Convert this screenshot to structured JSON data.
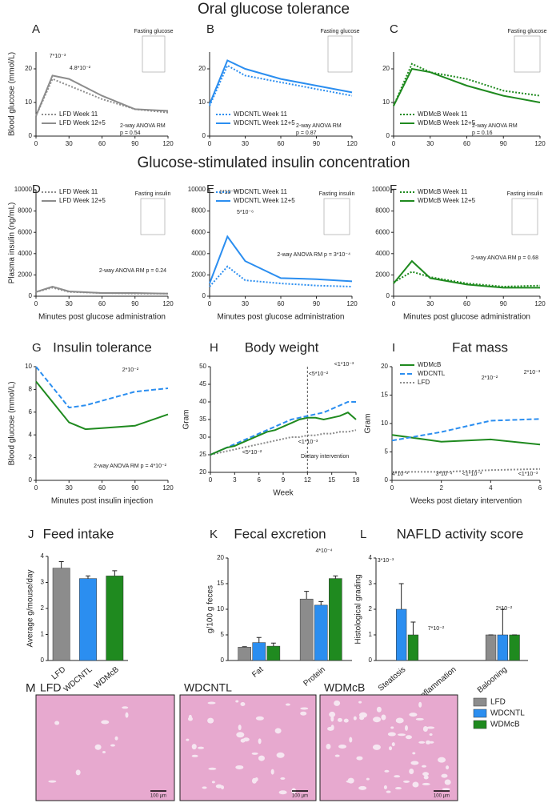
{
  "headings": [
    "Oral glucose tolerance",
    "Glucose-stimulated insulin concentration"
  ],
  "chart_data": [
    {
      "type": "line",
      "panel": "A",
      "ylabel": "Blood glucose (mmol/L)",
      "inset_title": "Fasting glucose",
      "x": [
        0,
        15,
        30,
        60,
        90,
        120
      ],
      "xlim": [
        0,
        120
      ],
      "xticks": [
        0,
        30,
        60,
        90,
        120
      ],
      "ylim": [
        0,
        25
      ],
      "yticks": [
        0,
        10,
        20
      ],
      "series": [
        {
          "name": "LFD Week 11",
          "color": "#8c8c8c",
          "dash": "dotted",
          "values": [
            6,
            17,
            15,
            11,
            8,
            7
          ]
        },
        {
          "name": "LFD Week 12+5",
          "color": "#8c8c8c",
          "dash": "solid",
          "values": [
            6,
            18,
            17,
            12,
            8,
            7.5
          ]
        }
      ],
      "annotations": [
        "7*10⁻³",
        "4.8*10⁻²",
        "2-way ANOVA RM",
        "p = 0.54"
      ]
    },
    {
      "type": "line",
      "panel": "B",
      "inset_title": "Fasting glucose",
      "x": [
        0,
        15,
        30,
        60,
        90,
        120
      ],
      "xlim": [
        0,
        120
      ],
      "xticks": [
        0,
        30,
        60,
        90,
        120
      ],
      "ylim": [
        0,
        25
      ],
      "yticks": [
        0,
        10,
        20
      ],
      "series": [
        {
          "name": "WDCNTL Week 11",
          "color": "#2b8ef0",
          "dash": "dotted",
          "values": [
            9,
            21,
            18,
            16,
            14,
            12
          ]
        },
        {
          "name": "WDCNTL Week 12+5",
          "color": "#2b8ef0",
          "dash": "solid",
          "values": [
            9.5,
            22.5,
            20,
            17,
            15,
            13
          ]
        }
      ],
      "annotations": [
        "2-way ANOVA RM",
        "p = 0.87"
      ]
    },
    {
      "type": "line",
      "panel": "C",
      "inset_title": "Fasting glucose",
      "x": [
        0,
        15,
        30,
        60,
        90,
        120
      ],
      "xlim": [
        0,
        120
      ],
      "xticks": [
        0,
        30,
        60,
        90,
        120
      ],
      "ylim": [
        0,
        25
      ],
      "yticks": [
        0,
        10,
        20
      ],
      "series": [
        {
          "name": "WDMcB Week 11",
          "color": "#1f8a1f",
          "dash": "dotted",
          "values": [
            9,
            21.5,
            19,
            17,
            13.5,
            12
          ]
        },
        {
          "name": "WDMcB Week 12+5",
          "color": "#1f8a1f",
          "dash": "solid",
          "values": [
            9,
            20,
            19,
            15,
            12,
            10
          ]
        }
      ],
      "annotations": [
        "2-way ANOVA RM",
        "p = 0.16"
      ]
    },
    {
      "type": "line",
      "panel": "D",
      "ylabel": "Plasma insulin (ng/mL)",
      "xlabel": "Minutes post glucose administration",
      "inset_title": "Fasting insulin",
      "x": [
        0,
        15,
        30,
        60,
        90,
        120
      ],
      "xlim": [
        0,
        120
      ],
      "xticks": [
        0,
        30,
        60,
        90,
        120
      ],
      "ylim": [
        0,
        10000
      ],
      "yticks": [
        0,
        2000,
        4000,
        6000,
        8000,
        10000
      ],
      "series": [
        {
          "name": "LFD Week 11",
          "color": "#8c8c8c",
          "dash": "dotted",
          "values": [
            400,
            800,
            400,
            300,
            250,
            250
          ]
        },
        {
          "name": "LFD Week 12+5",
          "color": "#8c8c8c",
          "dash": "solid",
          "values": [
            400,
            900,
            450,
            300,
            300,
            250
          ]
        }
      ],
      "annotations": [
        "2-way ANOVA RM p = 0.24"
      ]
    },
    {
      "type": "line",
      "panel": "E",
      "xlabel": "Minutes post glucose administration",
      "inset_title": "Fasting insulin",
      "x": [
        0,
        15,
        30,
        60,
        90,
        120
      ],
      "xlim": [
        0,
        120
      ],
      "xticks": [
        0,
        30,
        60,
        90,
        120
      ],
      "ylim": [
        0,
        10000
      ],
      "yticks": [
        0,
        2000,
        4000,
        6000,
        8000,
        10000
      ],
      "series": [
        {
          "name": "WDCNTL Week 11",
          "color": "#2b8ef0",
          "dash": "dotted",
          "values": [
            900,
            2800,
            1500,
            1200,
            1000,
            900
          ]
        },
        {
          "name": "WDCNTL Week 12+5",
          "color": "#2b8ef0",
          "dash": "solid",
          "values": [
            1200,
            5600,
            3300,
            1700,
            1600,
            1400
          ]
        }
      ],
      "annotations": [
        "1*10⁻¹⁰",
        "5*10⁻⁶",
        "2-way ANOVA RM p = 3*10⁻⁴"
      ]
    },
    {
      "type": "line",
      "panel": "F",
      "xlabel": "Minutes post glucose administration",
      "inset_title": "Fasting insulin",
      "x": [
        0,
        15,
        30,
        60,
        90,
        120
      ],
      "xlim": [
        0,
        120
      ],
      "xticks": [
        0,
        30,
        60,
        90,
        120
      ],
      "ylim": [
        0,
        10000
      ],
      "yticks": [
        0,
        2000,
        4000,
        6000,
        8000,
        10000
      ],
      "series": [
        {
          "name": "WDMcB Week 11",
          "color": "#1f8a1f",
          "dash": "dotted",
          "values": [
            1300,
            2300,
            1800,
            1200,
            900,
            1000
          ]
        },
        {
          "name": "WDMcB Week 12+5",
          "color": "#1f8a1f",
          "dash": "solid",
          "values": [
            1200,
            3300,
            1700,
            1100,
            800,
            800
          ]
        }
      ],
      "annotations": [
        "2-way ANOVA RM p = 0.68"
      ]
    },
    {
      "type": "line",
      "panel": "G",
      "title": "Insulin tolerance",
      "ylabel": "Blood glucose (mmol/L)",
      "xlabel": "Minutes post insulin injection",
      "x": [
        0,
        30,
        45,
        60,
        90,
        120
      ],
      "xlim": [
        0,
        120
      ],
      "xticks": [
        0,
        30,
        60,
        90,
        120
      ],
      "ylim": [
        0,
        10
      ],
      "yticks": [
        0,
        2,
        4,
        6,
        8,
        10
      ],
      "series": [
        {
          "color": "#2b8ef0",
          "dash": "dashed",
          "values": [
            10,
            6.4,
            6.6,
            7,
            7.8,
            8.1
          ]
        },
        {
          "color": "#1f8a1f",
          "dash": "solid",
          "values": [
            8.7,
            5.1,
            4.5,
            4.6,
            4.8,
            5.8
          ]
        }
      ],
      "annotations": [
        "2*10⁻²",
        "2-way ANOVA RM p = 4*10⁻²"
      ]
    },
    {
      "type": "line",
      "panel": "H",
      "title": "Body weight",
      "ylabel": "Gram",
      "xlabel": "Week",
      "x": [
        0,
        1,
        2,
        3,
        4,
        5,
        6,
        7,
        8,
        9,
        10,
        11,
        12,
        13,
        14,
        15,
        16,
        17,
        18
      ],
      "xlim": [
        0,
        18
      ],
      "xticks": [
        0,
        3,
        6,
        9,
        12,
        15,
        18
      ],
      "ylim": [
        20,
        50
      ],
      "yticks": [
        20,
        25,
        30,
        35,
        40,
        45,
        50
      ],
      "vline": 12,
      "series": [
        {
          "color": "#8c8c8c",
          "dash": "dotted",
          "values": [
            25,
            25.5,
            26,
            26.5,
            27,
            27.5,
            28,
            28.5,
            29,
            29.5,
            30,
            30,
            30.5,
            30.5,
            31,
            31,
            31.5,
            31.5,
            32
          ]
        },
        {
          "color": "#2b8ef0",
          "dash": "dashed",
          "values": [
            25,
            26,
            27,
            28,
            29,
            30,
            31,
            32,
            33,
            34,
            35,
            35.5,
            36,
            36.5,
            37,
            38,
            39,
            40,
            40
          ]
        },
        {
          "color": "#1f8a1f",
          "dash": "solid",
          "values": [
            25,
            26,
            27,
            27.5,
            28.5,
            29.5,
            30.5,
            31.5,
            32,
            33,
            34,
            35,
            35.5,
            35.5,
            35,
            35.5,
            36,
            37,
            35
          ]
        }
      ],
      "annotations": [
        "<1*10⁻³",
        "<5*10⁻²",
        "<5*10⁻²",
        "<1*10⁻³",
        "Dietary intervention"
      ]
    },
    {
      "type": "line",
      "panel": "I",
      "title": "Fat mass",
      "ylabel": "Gram",
      "xlabel": "Weeks post dietary intervention",
      "x": [
        0,
        2,
        4,
        6
      ],
      "xlim": [
        0,
        6
      ],
      "xticks": [
        0,
        2,
        4,
        6
      ],
      "ylim": [
        0,
        20
      ],
      "yticks": [
        0,
        5,
        10,
        15,
        20
      ],
      "series": [
        {
          "name": "WDMcB",
          "color": "#1f8a1f",
          "dash": "solid",
          "values": [
            8,
            6.8,
            7.2,
            6.3
          ]
        },
        {
          "name": "WDCNTL",
          "color": "#2b8ef0",
          "dash": "dashed",
          "values": [
            7,
            8.5,
            10.5,
            10.8
          ]
        },
        {
          "name": "LFD",
          "color": "#8c8c8c",
          "dash": "dotted",
          "values": [
            1.5,
            1.5,
            1.8,
            2
          ]
        }
      ],
      "annotations": [
        "2*10⁻²",
        "2*10⁻³",
        "4*10⁻³",
        "3*10⁻⁴",
        "<1*10⁻³",
        "<1*10⁻³"
      ]
    },
    {
      "type": "bar",
      "panel": "J",
      "title": "Feed intake",
      "ylabel": "Average g/mouse/day",
      "categories": [
        "LFD",
        "WDCNTL",
        "WDMcB"
      ],
      "values": [
        3.55,
        3.15,
        3.25
      ],
      "errors": [
        0.25,
        0.1,
        0.2
      ],
      "colors": [
        "#8c8c8c",
        "#2b8ef0",
        "#1f8a1f"
      ],
      "ylim": [
        0,
        4
      ],
      "yticks": [
        0,
        1,
        2,
        3,
        4
      ]
    },
    {
      "type": "bar",
      "panel": "K",
      "title": "Fecal excretion",
      "ylabel": "g/100 g feces",
      "categories": [
        "Fat",
        "Protein"
      ],
      "ylim": [
        0,
        20
      ],
      "yticks": [
        0,
        5,
        10,
        15,
        20
      ],
      "series": [
        {
          "color": "#8c8c8c",
          "values": [
            2.6,
            12
          ],
          "errors": [
            0.1,
            1.5
          ]
        },
        {
          "color": "#2b8ef0",
          "values": [
            3.5,
            10.8
          ],
          "errors": [
            1,
            0.7
          ]
        },
        {
          "color": "#1f8a1f",
          "values": [
            2.8,
            16
          ],
          "errors": [
            0.6,
            0.5
          ]
        }
      ],
      "annotations": [
        "4*10⁻⁴"
      ]
    },
    {
      "type": "bar",
      "panel": "L",
      "title": "NAFLD activity score",
      "ylabel": "Histological grading",
      "categories": [
        "Steatosis",
        "Inflammation",
        "Balooning"
      ],
      "ylim": [
        0,
        4
      ],
      "yticks": [
        0,
        1,
        2,
        3,
        4
      ],
      "series": [
        {
          "name": "LFD",
          "color": "#8c8c8c",
          "values": [
            0,
            0,
            1
          ],
          "errors": [
            0,
            0,
            0
          ]
        },
        {
          "name": "WDCNTL",
          "color": "#2b8ef0",
          "values": [
            2,
            0,
            1
          ],
          "errors": [
            1,
            0,
            1
          ]
        },
        {
          "name": "WDMcB",
          "color": "#1f8a1f",
          "values": [
            1,
            0,
            1
          ],
          "errors": [
            0.5,
            0,
            0
          ]
        }
      ],
      "annotations": [
        "3*10⁻³",
        "7*10⁻²",
        "2*10⁻²"
      ]
    }
  ],
  "histology": {
    "panel": "M",
    "labels": [
      "LFD",
      "WDCNTL",
      "WDMcB"
    ],
    "scale_bar": "100 µm"
  }
}
